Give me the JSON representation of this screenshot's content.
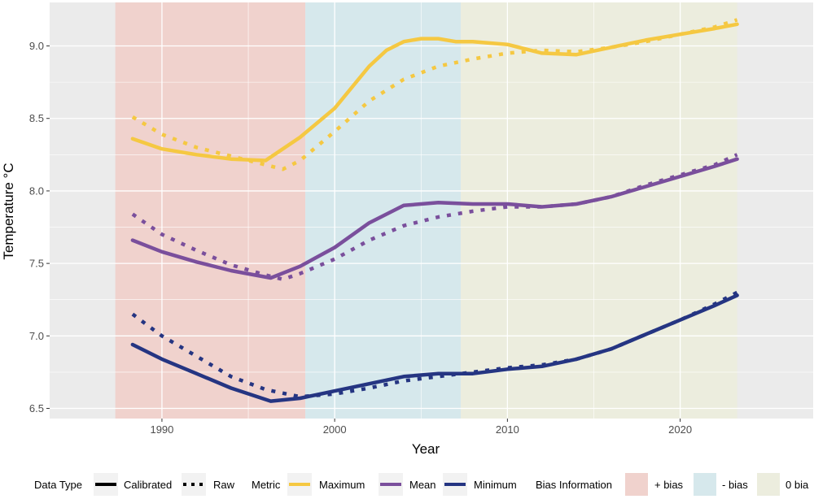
{
  "chart_data": {
    "type": "line",
    "title": "",
    "xlabel": "Year",
    "ylabel": "Temperature °C",
    "xlim": [
      1983.5,
      2027.7
    ],
    "ylim": [
      6.43,
      9.3
    ],
    "x_ticks": [
      1990,
      2000,
      2010,
      2020
    ],
    "y_ticks": [
      6.5,
      7.0,
      7.5,
      8.0,
      8.5,
      9.0
    ],
    "y_tick_labels": [
      "6.5",
      "7.0",
      "7.5",
      "8.0",
      "8.5",
      "9.0"
    ],
    "grid": true,
    "legend_position": "bottom",
    "bias_regions": [
      {
        "label": "+ bias",
        "from": 1987.3,
        "to": 1998.3,
        "color": "#f0d2cd"
      },
      {
        "label": "- bias",
        "from": 1998.3,
        "to": 2007.3,
        "color": "#d6e8ec"
      },
      {
        "label": "0 bia",
        "from": 2007.3,
        "to": 2023.3,
        "color": "#ecedde"
      }
    ],
    "series": [
      {
        "name": "Maximum",
        "type": "Calibrated",
        "color": "#f5c842",
        "x": [
          1988.3,
          1990,
          1992,
          1994,
          1996,
          1998,
          2000,
          2002,
          2003,
          2004,
          2005,
          2006,
          2007,
          2008,
          2010,
          2012,
          2014,
          2016,
          2018,
          2020,
          2022,
          2023.3
        ],
        "y": [
          8.36,
          8.29,
          8.25,
          8.22,
          8.21,
          8.37,
          8.57,
          8.86,
          8.97,
          9.03,
          9.05,
          9.05,
          9.03,
          9.03,
          9.01,
          8.95,
          8.94,
          8.99,
          9.04,
          9.08,
          9.12,
          9.15
        ]
      },
      {
        "name": "Maximum",
        "type": "Raw",
        "color": "#f5c842",
        "x": [
          1988.3,
          1990,
          1992,
          1994,
          1996,
          1997,
          1998,
          2000,
          2002,
          2004,
          2006,
          2008,
          2010,
          2012,
          2014,
          2016,
          2018,
          2020,
          2022,
          2023.3
        ],
        "y": [
          8.51,
          8.39,
          8.3,
          8.24,
          8.18,
          8.15,
          8.21,
          8.41,
          8.62,
          8.77,
          8.86,
          8.91,
          8.95,
          8.97,
          8.96,
          8.99,
          9.03,
          9.08,
          9.13,
          9.18
        ]
      },
      {
        "name": "Mean",
        "type": "Calibrated",
        "color": "#7a4f9c",
        "x": [
          1988.3,
          1990,
          1992,
          1994,
          1996.3,
          1998,
          2000,
          2002,
          2004,
          2006,
          2008,
          2010,
          2012,
          2014,
          2016,
          2018,
          2020,
          2022,
          2023.3
        ],
        "y": [
          7.66,
          7.58,
          7.51,
          7.45,
          7.4,
          7.48,
          7.61,
          7.78,
          7.9,
          7.92,
          7.91,
          7.91,
          7.89,
          7.91,
          7.96,
          8.03,
          8.1,
          8.17,
          8.22
        ]
      },
      {
        "name": "Mean",
        "type": "Raw",
        "color": "#7a4f9c",
        "x": [
          1988.3,
          1990,
          1992,
          1994,
          1996,
          1997,
          1998,
          2000,
          2002,
          2004,
          2006,
          2008,
          2010,
          2012,
          2014,
          2016,
          2018,
          2020,
          2022,
          2023.3
        ],
        "y": [
          7.84,
          7.7,
          7.59,
          7.49,
          7.42,
          7.39,
          7.43,
          7.53,
          7.66,
          7.76,
          7.82,
          7.86,
          7.89,
          7.89,
          7.91,
          7.96,
          8.04,
          8.11,
          8.18,
          8.25
        ]
      },
      {
        "name": "Minimum",
        "type": "Calibrated",
        "color": "#253582",
        "x": [
          1988.3,
          1990,
          1992,
          1994,
          1996.3,
          1998,
          2000,
          2002,
          2004,
          2006,
          2008,
          2010,
          2012,
          2014,
          2016,
          2018,
          2020,
          2022,
          2023.3
        ],
        "y": [
          6.94,
          6.84,
          6.74,
          6.64,
          6.55,
          6.57,
          6.62,
          6.67,
          6.72,
          6.74,
          6.74,
          6.77,
          6.79,
          6.84,
          6.91,
          7.01,
          7.11,
          7.21,
          7.28
        ]
      },
      {
        "name": "Minimum",
        "type": "Raw",
        "color": "#253582",
        "x": [
          1988.3,
          1990,
          1992,
          1994,
          1996,
          1998,
          2000,
          2002,
          2004,
          2006,
          2008,
          2010,
          2012,
          2014,
          2016,
          2018,
          2020,
          2022,
          2023.3
        ],
        "y": [
          7.15,
          7.0,
          6.86,
          6.72,
          6.63,
          6.58,
          6.6,
          6.64,
          6.69,
          6.72,
          6.75,
          6.78,
          6.8,
          6.84,
          6.91,
          7.01,
          7.11,
          7.22,
          7.3
        ]
      }
    ],
    "legend": {
      "data_type_title": "Data Type",
      "data_types": [
        {
          "label": "Calibrated",
          "style": "solid"
        },
        {
          "label": "Raw",
          "style": "dotted"
        }
      ],
      "metric_title": "Metric",
      "metrics": [
        {
          "label": "Maximum",
          "color": "#f5c842"
        },
        {
          "label": "Mean",
          "color": "#7a4f9c"
        },
        {
          "label": "Minimum",
          "color": "#253582"
        }
      ],
      "bias_title": "Bias Information",
      "bias": [
        {
          "label": "+ bias",
          "color": "#f0d2cd"
        },
        {
          "label": "- bias",
          "color": "#d6e8ec"
        },
        {
          "label": "0 bia",
          "color": "#ecedde"
        }
      ]
    }
  }
}
